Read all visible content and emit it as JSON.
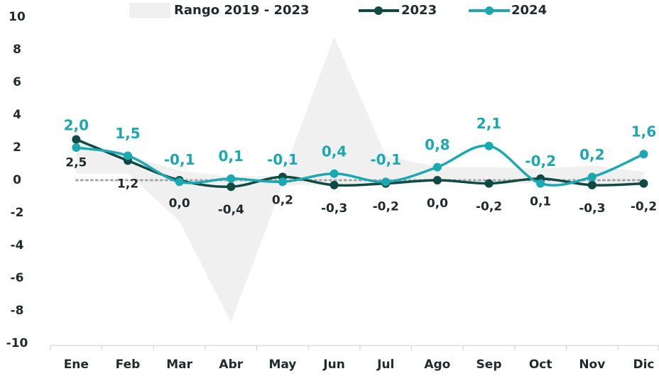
{
  "chart_data": {
    "type": "line",
    "categories": [
      "Ene",
      "Feb",
      "Mar",
      "Abr",
      "May",
      "Jun",
      "Jul",
      "Ago",
      "Sep",
      "Oct",
      "Nov",
      "Dic"
    ],
    "range": {
      "name": "Rango 2019 - 2023",
      "color": "#f0f0f0",
      "upper": [
        2.5,
        1.5,
        0.6,
        0.2,
        0.3,
        8.8,
        1.5,
        0.8,
        0.8,
        0.7,
        0.9,
        0.5
      ],
      "lower": [
        0.4,
        0.4,
        -2.5,
        -8.7,
        -0.3,
        -0.3,
        -0.2,
        -0.1,
        -0.2,
        -0.2,
        -0.3,
        -0.2
      ]
    },
    "series": [
      {
        "name": "2023",
        "color": "#0f4a45",
        "values": [
          2.5,
          1.2,
          0.0,
          -0.4,
          0.2,
          -0.3,
          -0.2,
          0.0,
          -0.2,
          0.1,
          -0.3,
          -0.2
        ],
        "value_labels": [
          "2,5",
          "1,2",
          "0,0",
          "-0,4",
          "0,2",
          "-0,3",
          "-0,2",
          "0,0",
          "-0,2",
          "0,1",
          "-0,3",
          "-0,2"
        ]
      },
      {
        "name": "2024",
        "color": "#1ba9b1",
        "values": [
          2.0,
          1.5,
          -0.1,
          0.1,
          -0.1,
          0.4,
          -0.1,
          0.8,
          2.1,
          -0.2,
          0.2,
          1.6
        ],
        "value_labels": [
          "2,0",
          "1,5",
          "-0,1",
          "0,1",
          "-0,1",
          "0,4",
          "-0,1",
          "0,8",
          "2,1",
          "-0,2",
          "0,2",
          "1,6"
        ]
      }
    ],
    "ylim": [
      -10,
      10
    ],
    "yticks": [
      -10,
      -8,
      -6,
      -4,
      -2,
      0,
      2,
      4,
      6,
      8,
      10
    ]
  }
}
